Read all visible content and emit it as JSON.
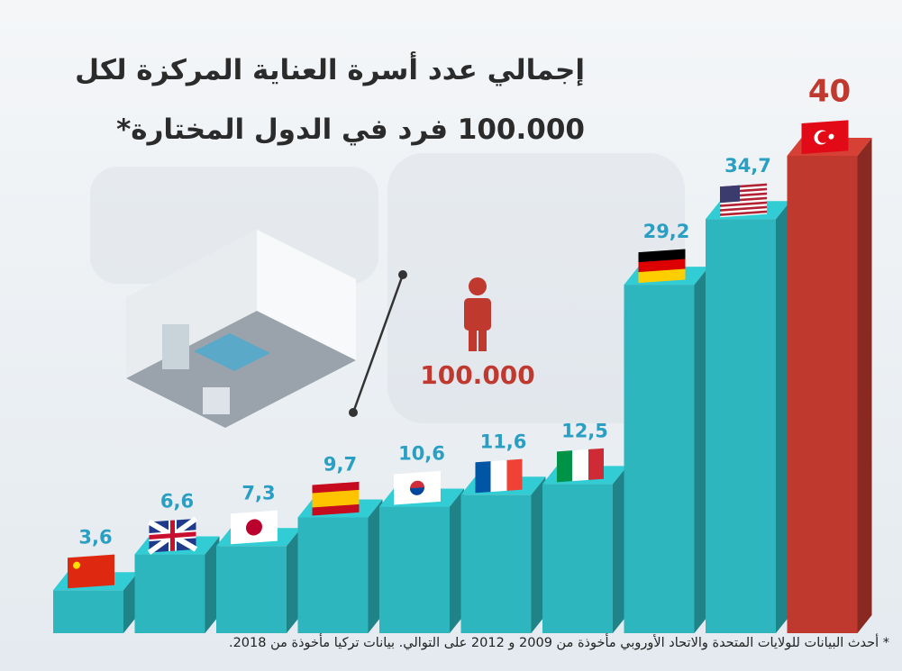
{
  "chart_data": {
    "type": "bar",
    "title": "إجمالي عدد أسرة العناية المركزة لكل",
    "subtitle": "100.000 فرد في الدول المختارة*",
    "annotation": "100.000",
    "footnote": "* أحدث البيانات للولايات المتحدة والاتحاد الأوروبي مأخوذة من 2009 و 2012 على التوالي. بيانات تركيا مأخوذة من 2018.",
    "categories": [
      null,
      null,
      null,
      null,
      null,
      null,
      null,
      null,
      null,
      null
    ],
    "values": [
      3.6,
      6.6,
      7.3,
      9.7,
      10.6,
      11.6,
      12.5,
      29.2,
      34.7,
      40
    ],
    "value_labels": [
      "3,6",
      "6,6",
      "7,3",
      "9,7",
      "10,6",
      "11,6",
      "12,5",
      "29,2",
      "34,7",
      "40"
    ],
    "colors": [
      "#2db6bd",
      "#2db6bd",
      "#2db6bd",
      "#2db6bd",
      "#2db6bd",
      "#2db6bd",
      "#2db6bd",
      "#2db6bd",
      "#2db6bd",
      "#c0392f"
    ]
  }
}
